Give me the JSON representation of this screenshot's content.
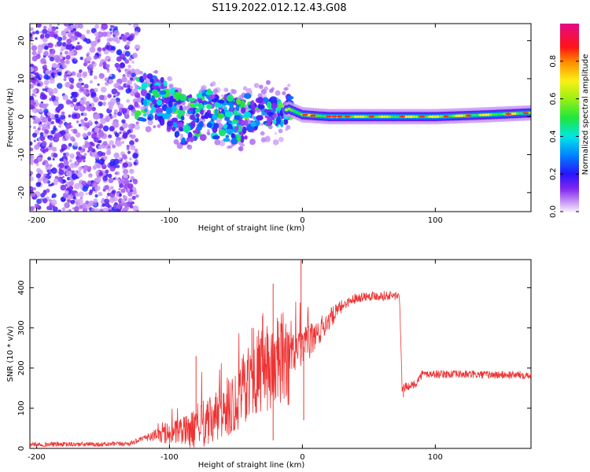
{
  "title": "S119.2022.012.12.43.G08",
  "chart_data": [
    {
      "type": "heatmap",
      "xlabel": "Height of straight line (km)",
      "ylabel": "Frequency (Hz)",
      "xlim": [
        -205,
        172
      ],
      "ylim": [
        -25,
        24.5
      ],
      "xticks": [
        -200,
        -100,
        0,
        100
      ],
      "xtick_labels": [
        "-200",
        "-100",
        "0",
        "100"
      ],
      "yticks": [
        -20,
        -10,
        0,
        10,
        20
      ],
      "ytick_labels": [
        "-20",
        "-10",
        "0",
        "10",
        "20"
      ],
      "colorbar": {
        "label": "Normalized spectral amplitude",
        "range": [
          0,
          1
        ],
        "ticks": [
          0,
          0.2,
          0.4,
          0.6,
          0.8
        ],
        "tick_labels": [
          "0.0",
          "0.2",
          "0.4",
          "0.6",
          "0.8"
        ]
      },
      "ridge": [
        {
          "x": -125,
          "y": 5
        },
        {
          "x": -110,
          "y": 4.5
        },
        {
          "x": -100,
          "y": 3
        },
        {
          "x": -90,
          "y": -1
        },
        {
          "x": -80,
          "y": 0
        },
        {
          "x": -70,
          "y": 1
        },
        {
          "x": -60,
          "y": 0
        },
        {
          "x": -50,
          "y": -1
        },
        {
          "x": -40,
          "y": 0
        },
        {
          "x": -30,
          "y": 1.5
        },
        {
          "x": -20,
          "y": 1
        },
        {
          "x": -10,
          "y": 2
        },
        {
          "x": 0,
          "y": 0.5
        },
        {
          "x": 20,
          "y": 0
        },
        {
          "x": 60,
          "y": 0
        },
        {
          "x": 100,
          "y": 0
        },
        {
          "x": 140,
          "y": 0.5
        },
        {
          "x": 172,
          "y": 1
        }
      ]
    },
    {
      "type": "line",
      "xlabel": "Height of straight line (km)",
      "ylabel": "SNR (10 * v/v)",
      "xlim": [
        -205,
        172
      ],
      "ylim": [
        0,
        470
      ],
      "xticks": [
        -200,
        -100,
        0,
        100
      ],
      "xtick_labels": [
        "-200",
        "-100",
        "0",
        "100"
      ],
      "yticks": [
        0,
        100,
        200,
        300,
        400
      ],
      "ytick_labels": [
        "0",
        "100",
        "200",
        "300",
        "400"
      ],
      "color": "#ee3333",
      "series": [
        {
          "values": [
            {
              "x": -205,
              "y": 10
            },
            {
              "x": -180,
              "y": 10
            },
            {
              "x": -150,
              "y": 10
            },
            {
              "x": -130,
              "y": 12
            },
            {
              "x": -115,
              "y": 30
            },
            {
              "x": -100,
              "y": 35
            },
            {
              "x": -90,
              "y": 40
            },
            {
              "x": -80,
              "y": 50
            },
            {
              "x": -70,
              "y": 65
            },
            {
              "x": -60,
              "y": 90
            },
            {
              "x": -50,
              "y": 120
            },
            {
              "x": -40,
              "y": 170
            },
            {
              "x": -30,
              "y": 190
            },
            {
              "x": -20,
              "y": 210
            },
            {
              "x": -10,
              "y": 230
            },
            {
              "x": 0,
              "y": 250
            },
            {
              "x": 10,
              "y": 280
            },
            {
              "x": 20,
              "y": 320
            },
            {
              "x": 30,
              "y": 355
            },
            {
              "x": 40,
              "y": 375
            },
            {
              "x": 50,
              "y": 380
            },
            {
              "x": 60,
              "y": 380
            },
            {
              "x": 73,
              "y": 380
            },
            {
              "x": 75,
              "y": 150
            },
            {
              "x": 85,
              "y": 160
            },
            {
              "x": 90,
              "y": 185
            },
            {
              "x": 110,
              "y": 185
            },
            {
              "x": 140,
              "y": 183
            },
            {
              "x": 172,
              "y": 183
            }
          ]
        }
      ],
      "spikes": [
        {
          "x": -22,
          "y": 410
        },
        {
          "x": -1,
          "y": 470
        },
        {
          "x": -30,
          "y": 330
        },
        {
          "x": -38,
          "y": 300
        },
        {
          "x": -80,
          "y": 230
        },
        {
          "x": 1,
          "y": 70
        },
        {
          "x": 76,
          "y": 128
        },
        {
          "x": -22,
          "y": 20
        }
      ]
    }
  ]
}
